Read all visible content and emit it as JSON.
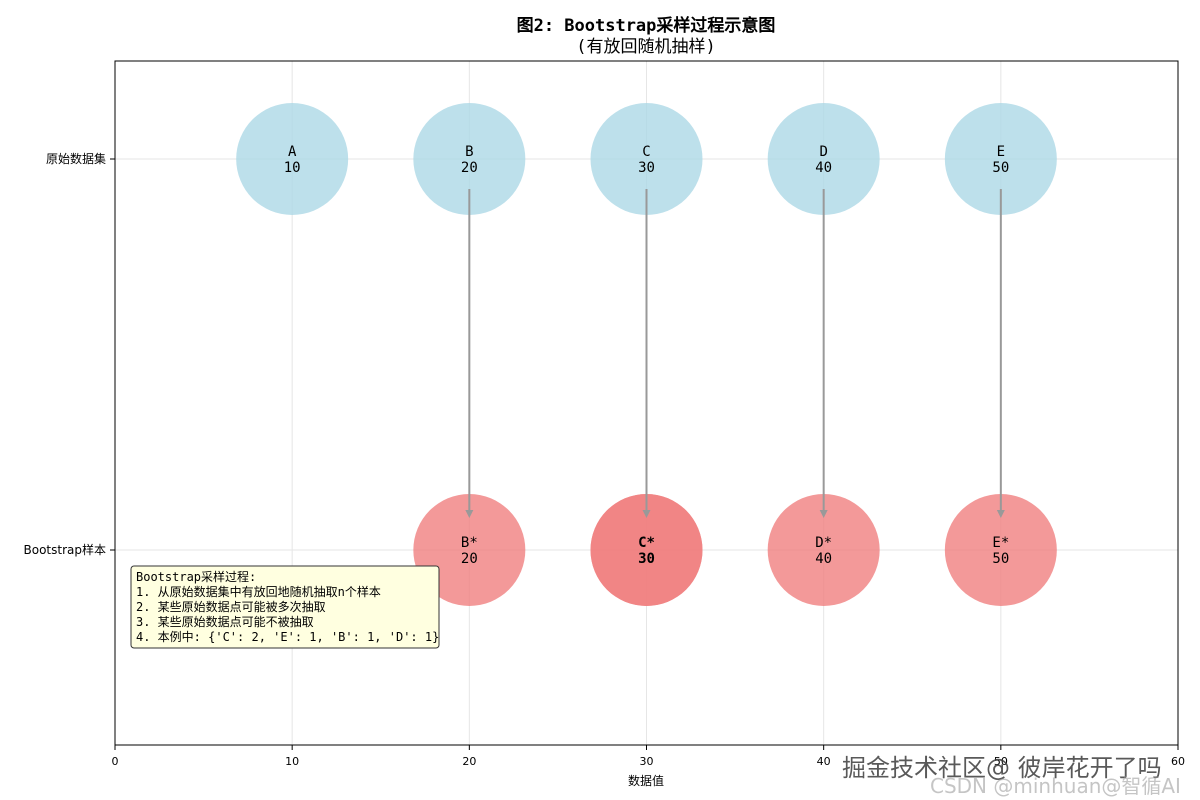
{
  "chart_data": {
    "type": "scatter",
    "title": "图2: Bootstrap采样过程示意图",
    "subtitle": "(有放回随机抽样)",
    "xlabel": "数据值",
    "ylabel": "",
    "xlim": [
      0,
      60
    ],
    "xticks": [
      0,
      10,
      20,
      30,
      40,
      50,
      60
    ],
    "xtick_labels": [
      "0",
      "10",
      "20",
      "30",
      "40",
      "50",
      "60"
    ],
    "rows": [
      "原始数据集",
      "Bootstrap样本"
    ],
    "grid": true,
    "original": [
      {
        "label": "A",
        "value": 10
      },
      {
        "label": "B",
        "value": 20
      },
      {
        "label": "C",
        "value": 30
      },
      {
        "label": "D",
        "value": 40
      },
      {
        "label": "E",
        "value": 50
      }
    ],
    "bootstrap": [
      {
        "label": "B*",
        "value": 20,
        "count": 1
      },
      {
        "label": "C*",
        "value": 30,
        "count": 2
      },
      {
        "label": "D*",
        "value": 40,
        "count": 1
      },
      {
        "label": "E*",
        "value": 50,
        "count": 1
      }
    ],
    "arrows": [
      {
        "from": "B",
        "to": "B*"
      },
      {
        "from": "C",
        "to": "C*"
      },
      {
        "from": "D",
        "to": "D*"
      },
      {
        "from": "E",
        "to": "E*"
      }
    ],
    "annotation_lines": [
      "Bootstrap采样过程:",
      "1. 从原始数据集中有放回地随机抽取n个样本",
      "2. 某些原始数据点可能被多次抽取",
      "3. 某些原始数据点可能不被抽取",
      "4. 本例中: {'C': 2, 'E': 1, 'B': 1, 'D': 1}"
    ],
    "colors": {
      "original": "#add8e6",
      "bootstrap": "#f08080",
      "arrow": "#999999",
      "annotation_bg": "#ffffe0"
    }
  },
  "watermark": {
    "line1": "掘金技术社区@ 彼岸花开了吗",
    "line2": "CSDN @minhuan@智循AI"
  }
}
